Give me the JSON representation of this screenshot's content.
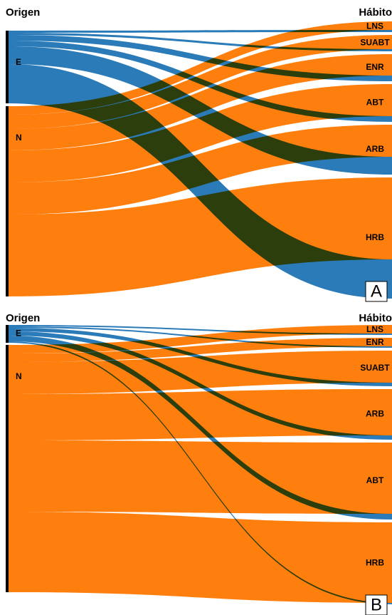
{
  "chart_data": [
    {
      "type": "alluvial",
      "left_title": "Origen",
      "right_title": "Hábito",
      "panel": "A",
      "categories": [
        "LNS",
        "SUABT",
        "ENR",
        "ABT",
        "ARB",
        "HRB"
      ],
      "series": [
        {
          "name": "E",
          "color": "#2b7bb9",
          "values": [
            3,
            3,
            8,
            8,
            25,
            55
          ]
        },
        {
          "name": "N",
          "color": "#ff7f0e",
          "values": [
            12,
            20,
            30,
            45,
            45,
            115
          ]
        }
      ]
    },
    {
      "type": "alluvial",
      "left_title": "Origen",
      "right_title": "Hábito",
      "panel": "B",
      "categories": [
        "LNS",
        "ENR",
        "SUABT",
        "ARB",
        "ABT",
        "HRB"
      ],
      "series": [
        {
          "name": "E",
          "color": "#2b7bb9",
          "values": [
            2,
            2,
            5,
            6,
            8,
            2
          ]
        },
        {
          "name": "N",
          "color": "#ff7f0e",
          "values": [
            12,
            12,
            45,
            65,
            100,
            113
          ]
        }
      ]
    }
  ]
}
